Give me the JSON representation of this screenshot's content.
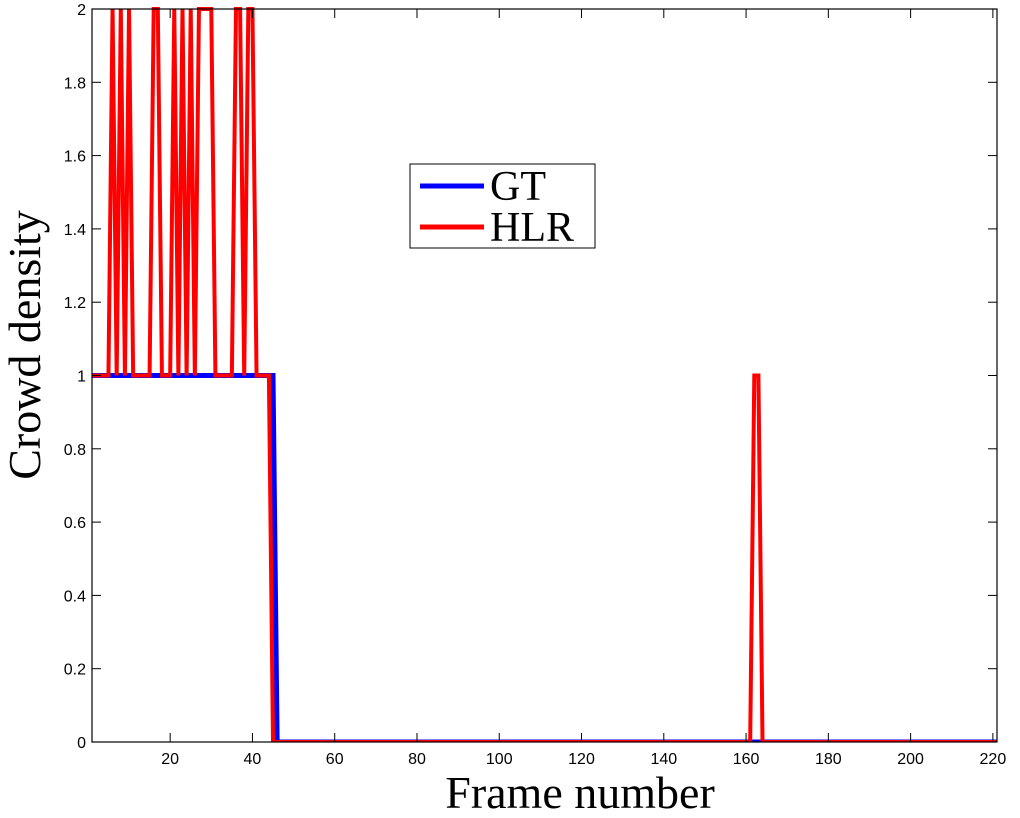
{
  "chart_data": {
    "type": "line",
    "title": "",
    "xlabel": "Frame number",
    "ylabel": "Crowd density",
    "xlim": [
      1,
      221
    ],
    "ylim": [
      0,
      2
    ],
    "x_ticks": [
      20,
      40,
      60,
      80,
      100,
      120,
      140,
      160,
      180,
      200,
      220
    ],
    "y_ticks": [
      0,
      0.2,
      0.4,
      0.6,
      0.8,
      1,
      1.2,
      1.4,
      1.6,
      1.8,
      2
    ],
    "grid": false,
    "legend_position": "upper-center",
    "series": [
      {
        "name": "GT",
        "color": "#0000ff",
        "x": [
          1,
          45,
          46,
          221
        ],
        "y": [
          1,
          1,
          0,
          0
        ]
      },
      {
        "name": "HLR",
        "color": "#ff0000",
        "x": [
          1,
          5,
          6,
          7,
          8,
          9,
          10,
          11,
          15,
          16,
          17,
          18,
          19,
          20,
          21,
          22,
          23,
          24,
          25,
          26,
          27,
          29,
          30,
          31,
          35,
          36,
          37,
          38,
          39,
          40,
          41,
          43,
          44,
          45,
          161,
          162,
          163,
          164,
          165,
          221
        ],
        "y": [
          1,
          1,
          2,
          1,
          2,
          1,
          2,
          1,
          1,
          2,
          2,
          1,
          1,
          1,
          2,
          1,
          2,
          1,
          2,
          1,
          2,
          2,
          2,
          1,
          1,
          2,
          2,
          1,
          2,
          2,
          1,
          1,
          1,
          0,
          0,
          1,
          1,
          0,
          0,
          0
        ]
      }
    ]
  }
}
